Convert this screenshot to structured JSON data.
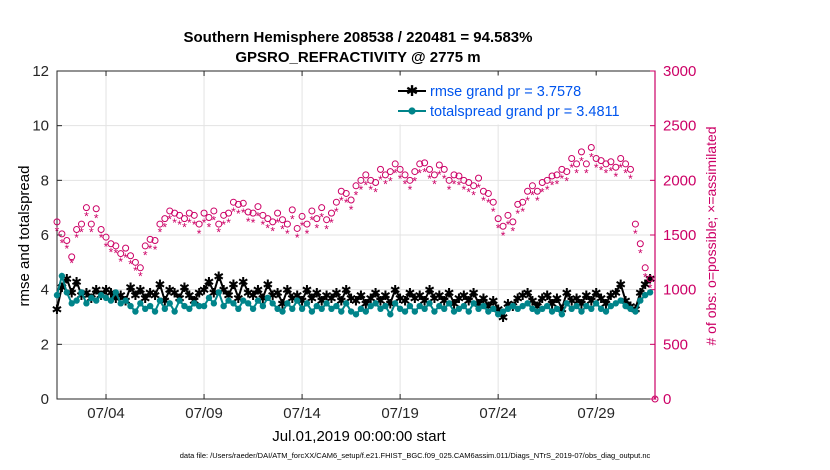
{
  "chart_data": {
    "type": "line",
    "title": "Southern Hemisphere 208538 / 220481 = 94.583%",
    "subtitle": "GPSRO_REFRACTIVITY @ 2775 m",
    "xlabel": "Jul.01,2019 00:00:00 start",
    "ylabel": "rmse and totalspread",
    "y2label": "# of obs: o=possible; ×=assimilated",
    "footnote": "data file: /Users/raeder/DAI/ATM_forcXX/CAM6_setup/f.e21.FHIST_BGC.f09_025.CAM6assim.011/Diags_NTrS_2019-07/obs_diag_output.nc",
    "xlim": [
      1.5,
      32.0
    ],
    "ylim": [
      0,
      12
    ],
    "y2lim": [
      0,
      3000
    ],
    "xticks": [
      4,
      9,
      14,
      19,
      24,
      29
    ],
    "xtick_labels": [
      "07/04",
      "07/09",
      "07/14",
      "07/19",
      "07/24",
      "07/29"
    ],
    "yticks": [
      0,
      2,
      4,
      6,
      8,
      10,
      12
    ],
    "ytick_labels": [
      "0",
      "2",
      "4",
      "6",
      "8",
      "10",
      "12"
    ],
    "y2ticks": [
      0,
      500,
      1000,
      1500,
      2000,
      2500,
      3000
    ],
    "y2tick_labels": [
      "0",
      "500",
      "1000",
      "1500",
      "2000",
      "2500",
      "3000"
    ],
    "grid": true,
    "legend_position": "top-right",
    "x": [
      1.5,
      1.75,
      2.0,
      2.25,
      2.5,
      2.75,
      3.0,
      3.25,
      3.5,
      3.75,
      4.0,
      4.25,
      4.5,
      4.75,
      5.0,
      5.25,
      5.5,
      5.75,
      6.0,
      6.25,
      6.5,
      6.75,
      7.0,
      7.25,
      7.5,
      7.75,
      8.0,
      8.25,
      8.5,
      8.75,
      9.0,
      9.25,
      9.5,
      9.75,
      10.0,
      10.25,
      10.5,
      10.75,
      11.0,
      11.25,
      11.5,
      11.75,
      12.0,
      12.25,
      12.5,
      12.75,
      13.0,
      13.25,
      13.5,
      13.75,
      14.0,
      14.25,
      14.5,
      14.75,
      15.0,
      15.25,
      15.5,
      15.75,
      16.0,
      16.25,
      16.5,
      16.75,
      17.0,
      17.25,
      17.5,
      17.75,
      18.0,
      18.25,
      18.5,
      18.75,
      19.0,
      19.25,
      19.5,
      19.75,
      20.0,
      20.25,
      20.5,
      20.75,
      21.0,
      21.25,
      21.5,
      21.75,
      22.0,
      22.25,
      22.5,
      22.75,
      23.0,
      23.25,
      23.5,
      23.75,
      24.0,
      24.25,
      24.5,
      24.75,
      25.0,
      25.25,
      25.5,
      25.75,
      26.0,
      26.25,
      26.5,
      26.75,
      27.0,
      27.25,
      27.5,
      27.75,
      28.0,
      28.25,
      28.5,
      28.75,
      29.0,
      29.25,
      29.5,
      29.75,
      30.0,
      30.25,
      30.5,
      30.75,
      31.0,
      31.25,
      31.5,
      31.75
    ],
    "series": [
      {
        "name": "rmse grand pr = 3.7578",
        "color": "#000000",
        "marker": "star",
        "axis": "left",
        "values": [
          3.3,
          4.1,
          4.4,
          3.9,
          4.3,
          3.8,
          3.9,
          3.7,
          4.0,
          3.8,
          4.0,
          3.9,
          3.7,
          3.8,
          3.6,
          4.1,
          3.8,
          4.0,
          3.7,
          3.9,
          3.8,
          4.2,
          3.6,
          4.0,
          3.9,
          3.7,
          4.1,
          3.8,
          3.6,
          3.9,
          4.0,
          4.3,
          3.9,
          4.5,
          4.0,
          3.8,
          4.2,
          3.7,
          4.3,
          3.9,
          3.8,
          4.0,
          3.7,
          4.2,
          3.8,
          3.9,
          3.5,
          4.0,
          3.7,
          3.8,
          3.6,
          4.0,
          3.7,
          3.9,
          3.6,
          3.8,
          3.7,
          3.9,
          3.6,
          4.0,
          3.7,
          3.6,
          3.8,
          3.5,
          3.7,
          3.9,
          3.6,
          3.8,
          3.5,
          4.0,
          3.7,
          3.6,
          3.9,
          3.7,
          3.8,
          3.6,
          4.0,
          3.7,
          3.8,
          3.6,
          3.9,
          3.5,
          3.7,
          3.8,
          3.6,
          3.9,
          3.5,
          3.7,
          3.4,
          3.6,
          3.3,
          3.0,
          3.5,
          3.4,
          3.7,
          3.8,
          3.9,
          3.6,
          3.4,
          3.7,
          3.8,
          3.5,
          3.7,
          3.3,
          3.9,
          3.6,
          3.7,
          3.5,
          3.8,
          3.6,
          3.9,
          3.7,
          3.5,
          3.8,
          3.9,
          4.2,
          3.6,
          3.4,
          3.3,
          3.9,
          4.2,
          4.4
        ]
      },
      {
        "name": "totalspread grand pr = 3.4811",
        "color": "#00848a",
        "marker": "dot",
        "axis": "left",
        "values": [
          3.8,
          4.5,
          3.9,
          3.5,
          3.6,
          3.9,
          3.5,
          3.7,
          3.6,
          3.8,
          3.7,
          3.6,
          3.9,
          3.5,
          3.6,
          3.4,
          3.2,
          3.5,
          3.3,
          3.4,
          3.2,
          3.6,
          3.3,
          3.5,
          3.2,
          3.6,
          3.4,
          3.3,
          3.5,
          3.4,
          3.4,
          3.7,
          3.5,
          3.9,
          3.4,
          3.6,
          3.5,
          3.3,
          3.6,
          3.5,
          3.3,
          3.6,
          3.4,
          3.7,
          3.5,
          3.3,
          3.2,
          3.5,
          3.3,
          3.6,
          3.3,
          3.5,
          3.2,
          3.4,
          3.3,
          3.5,
          3.3,
          3.4,
          3.2,
          3.5,
          3.2,
          3.1,
          3.3,
          3.2,
          3.4,
          3.5,
          3.3,
          3.4,
          3.1,
          3.5,
          3.3,
          3.2,
          3.4,
          3.2,
          3.4,
          3.3,
          3.5,
          3.2,
          3.4,
          3.3,
          3.5,
          3.2,
          3.3,
          3.4,
          3.2,
          3.5,
          3.3,
          3.4,
          3.2,
          3.3,
          3.1,
          3.2,
          3.3,
          3.4,
          3.3,
          3.4,
          3.5,
          3.3,
          3.2,
          3.3,
          3.4,
          3.2,
          3.3,
          3.1,
          3.5,
          3.3,
          3.4,
          3.2,
          3.4,
          3.3,
          3.5,
          3.3,
          3.2,
          3.4,
          3.5,
          3.6,
          3.4,
          3.3,
          3.2,
          3.6,
          3.8,
          3.9
        ]
      },
      {
        "name": "possible",
        "color": "#cc0066",
        "marker": "circle",
        "axis": "right",
        "values": [
          1620,
          1510,
          1450,
          1300,
          1550,
          1600,
          1750,
          1600,
          1740,
          1550,
          1480,
          1420,
          1400,
          1330,
          1380,
          1310,
          1250,
          1200,
          1400,
          1460,
          1450,
          1600,
          1650,
          1720,
          1700,
          1680,
          1650,
          1700,
          1680,
          1600,
          1700,
          1660,
          1720,
          1600,
          1680,
          1700,
          1800,
          1780,
          1790,
          1710,
          1700,
          1760,
          1680,
          1650,
          1620,
          1700,
          1640,
          1600,
          1730,
          1560,
          1670,
          1600,
          1720,
          1650,
          1750,
          1640,
          1700,
          1800,
          1900,
          1880,
          1820,
          1950,
          2000,
          2050,
          2000,
          1980,
          2100,
          2050,
          2080,
          2150,
          2100,
          2050,
          2000,
          2080,
          2150,
          2160,
          2100,
          2050,
          2140,
          2100,
          2000,
          2050,
          2040,
          2000,
          1980,
          1950,
          2020,
          1900,
          1880,
          1800,
          1650,
          1580,
          1680,
          1620,
          1780,
          1800,
          1900,
          1950,
          1900,
          1980,
          2000,
          2040,
          2050,
          2100,
          2080,
          2200,
          2150,
          2260,
          2150,
          2300,
          2200,
          2180,
          2150,
          2170,
          2120,
          2200,
          2150,
          2100,
          1600,
          1420,
          1200,
          1100
        ]
      },
      {
        "name": "assimilated",
        "color": "#cc0066",
        "marker": "asterisk",
        "axis": "right",
        "values": [
          1540,
          1430,
          1380,
          1250,
          1480,
          1530,
          1680,
          1530,
          1660,
          1480,
          1400,
          1350,
          1340,
          1260,
          1300,
          1240,
          1180,
          1130,
          1320,
          1380,
          1370,
          1530,
          1580,
          1650,
          1620,
          1600,
          1580,
          1620,
          1600,
          1520,
          1620,
          1580,
          1640,
          1530,
          1600,
          1620,
          1720,
          1700,
          1710,
          1630,
          1620,
          1680,
          1600,
          1570,
          1540,
          1620,
          1560,
          1520,
          1650,
          1480,
          1590,
          1520,
          1640,
          1570,
          1670,
          1560,
          1620,
          1720,
          1820,
          1800,
          1740,
          1870,
          1920,
          1960,
          1920,
          1900,
          2010,
          1970,
          2000,
          2070,
          2020,
          1970,
          1920,
          2000,
          2070,
          2080,
          2020,
          1970,
          2060,
          2020,
          1920,
          1970,
          1960,
          1920,
          1900,
          1870,
          1940,
          1820,
          1800,
          1720,
          1570,
          1500,
          1600,
          1540,
          1700,
          1720,
          1820,
          1870,
          1820,
          1900,
          1920,
          1960,
          1970,
          2020,
          2000,
          2120,
          2070,
          2180,
          2070,
          2220,
          2120,
          2100,
          2070,
          2090,
          2040,
          2120,
          2070,
          2020,
          1520,
          1340,
          1120,
          1020
        ]
      }
    ],
    "end_markers": [
      {
        "x": 32.0,
        "y2": 0,
        "marker": "circle"
      },
      {
        "x": 32.0,
        "y2": 0,
        "marker": "asterisk"
      }
    ]
  }
}
